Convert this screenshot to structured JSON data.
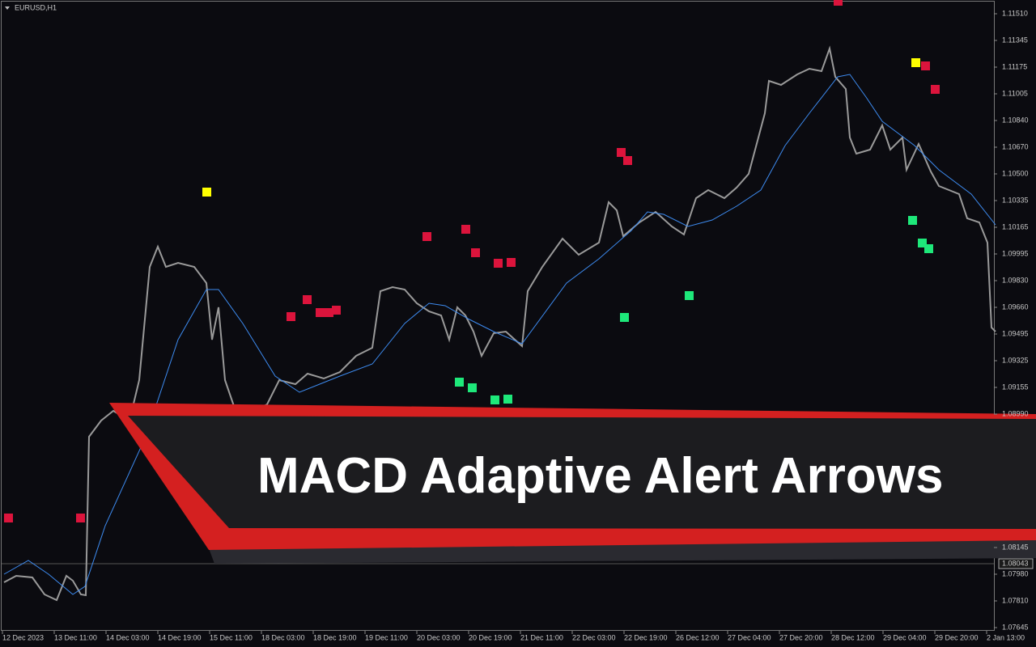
{
  "header": {
    "symbol": "EURUSD,H1"
  },
  "price_axis": {
    "labels": [
      "1.11510",
      "1.11345",
      "1.11175",
      "1.11005",
      "1.10840",
      "1.10670",
      "1.10500",
      "1.10335",
      "1.10165",
      "1.09995",
      "1.09830",
      "1.09660",
      "1.09495",
      "1.09325",
      "1.09155",
      "1.08990"
    ],
    "lower_labels": [
      "1.08145",
      "1.07980",
      "1.07810",
      "1.07645"
    ],
    "current_price": "1.08043"
  },
  "time_axis": {
    "labels": [
      "12 Dec 2023",
      "13 Dec 11:00",
      "14 Dec 03:00",
      "14 Dec 19:00",
      "15 Dec 11:00",
      "18 Dec 03:00",
      "18 Dec 19:00",
      "19 Dec 11:00",
      "20 Dec 03:00",
      "20 Dec 19:00",
      "21 Dec 11:00",
      "22 Dec 03:00",
      "22 Dec 19:00",
      "26 Dec 12:00",
      "27 Dec 04:00",
      "27 Dec 20:00",
      "28 Dec 12:00",
      "29 Dec 04:00",
      "29 Dec 20:00",
      "2 Jan 13:00"
    ]
  },
  "banner": {
    "title": "MACD Adaptive Alert Arrows"
  }
}
